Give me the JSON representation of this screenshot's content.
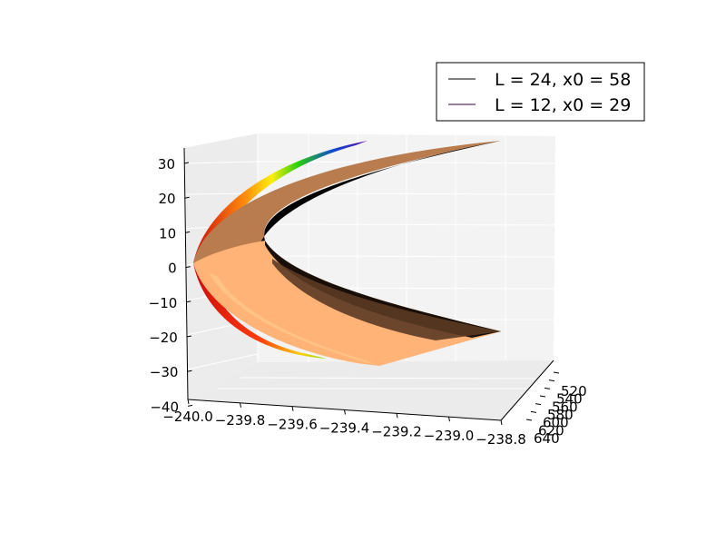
{
  "chart_data": {
    "type": "surface3d",
    "title": "",
    "xlabel": "",
    "ylabel": "",
    "zlabel": "",
    "x_ticks": [
      "−240.0",
      "−239.8",
      "−239.6",
      "−239.4",
      "−239.2",
      "−239.0",
      "−238.8"
    ],
    "x_range": [
      -240.0,
      -238.8
    ],
    "y_ticks": [
      "520",
      "540",
      "560",
      "580",
      "600",
      "620",
      "640"
    ],
    "y_range": [
      520,
      640
    ],
    "z_ticks": [
      "30",
      "20",
      "10",
      "0",
      "−10",
      "−20",
      "−30",
      "−40"
    ],
    "z_range": [
      -40,
      32
    ],
    "grid": true,
    "legend_position": "top-right",
    "series": [
      {
        "name": "L = 24, x0 = 58",
        "line_color": "#000000",
        "colormap": "copper",
        "colors": [
          "#000000",
          "#4a2f1e",
          "#b57c50",
          "#ffc07e"
        ]
      },
      {
        "name": "L = 12, x0 = 29",
        "line_color": "#3a003f",
        "colormap": "spectral",
        "colors": [
          "#cc0000",
          "#ff6a00",
          "#ffee00",
          "#22cc00",
          "#0044cc",
          "#5500aa",
          "#3a003f"
        ]
      }
    ]
  }
}
